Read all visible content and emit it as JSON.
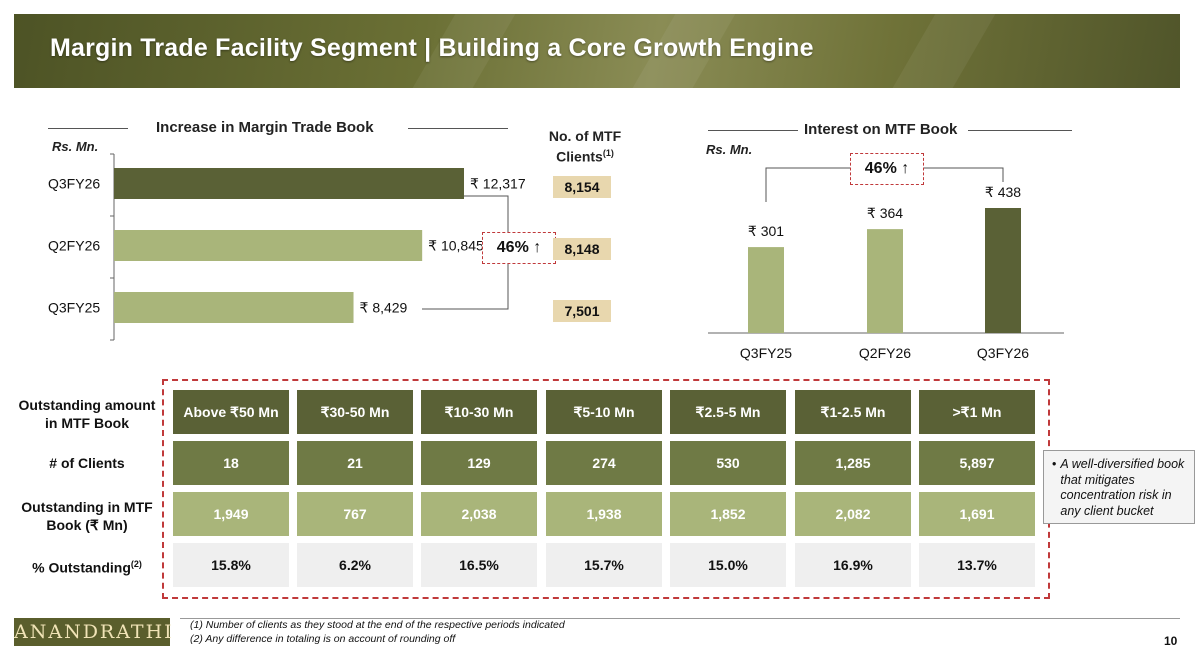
{
  "title": "Margin Trade Facility Segment | Building a Core Growth Engine",
  "colors": {
    "dark_olive": "#5a6136",
    "light_olive": "#a9b57a",
    "tan": "#e8d7ae",
    "accent_red": "#c0393b"
  },
  "left_chart": {
    "heading": "Increase in Margin Trade Book",
    "unit": "Rs. Mn.",
    "clients_header_line1": "No. of MTF",
    "clients_header_line2": "Clients",
    "clients_header_sup": "(1)",
    "growth_label": "46% ↑",
    "clients": [
      "8,154",
      "8,148",
      "7,501"
    ]
  },
  "right_chart": {
    "heading": "Interest on MTF Book",
    "unit": "Rs. Mn.",
    "growth_label": "46% ↑"
  },
  "chart_data": [
    {
      "type": "bar",
      "orientation": "horizontal",
      "title": "Increase in Margin Trade Book",
      "ylabel": "Rs. Mn.",
      "categories": [
        "Q3FY26",
        "Q2FY26",
        "Q3FY25"
      ],
      "values": [
        12317,
        10845,
        8429
      ],
      "value_labels": [
        "₹ 12,317",
        "₹ 10,845",
        "₹ 8,429"
      ],
      "xlim": [
        0,
        14000
      ]
    },
    {
      "type": "bar",
      "orientation": "vertical",
      "title": "Interest on MTF Book",
      "ylabel": "Rs. Mn.",
      "categories": [
        "Q3FY25",
        "Q2FY26",
        "Q3FY26"
      ],
      "values": [
        301,
        364,
        438
      ],
      "value_labels": [
        "₹ 301",
        "₹ 364",
        "₹ 438"
      ],
      "ylim": [
        0,
        500
      ]
    }
  ],
  "table": {
    "row_labels": [
      "Outstanding amount in MTF Book",
      "# of Clients",
      "Outstanding in MTF Book (₹ Mn)",
      "% Outstanding"
    ],
    "pct_label": "% Outstanding",
    "pct_sup": "(2)",
    "buckets": [
      "Above ₹50 Mn",
      "₹30-50 Mn",
      "₹10-30 Mn",
      "₹5-10 Mn",
      "₹2.5-5 Mn",
      "₹1-2.5 Mn",
      ">₹1 Mn"
    ],
    "clients": [
      "18",
      "21",
      "129",
      "274",
      "530",
      "1,285",
      "5,897"
    ],
    "outstanding": [
      "1,949",
      "767",
      "2,038",
      "1,938",
      "1,852",
      "2,082",
      "1,691"
    ],
    "pct": [
      "15.8%",
      "6.2%",
      "16.5%",
      "15.7%",
      "15.0%",
      "16.9%",
      "13.7%"
    ]
  },
  "side_note": "A well-diversified book that mitigates concentration risk in any client bucket",
  "footer": {
    "logo": "ANANDRATHI",
    "note1": "(1)   Number of clients as they stood at the end of the respective periods indicated",
    "note2": "(2)   Any difference in totaling is on account of rounding off",
    "page": "10"
  }
}
